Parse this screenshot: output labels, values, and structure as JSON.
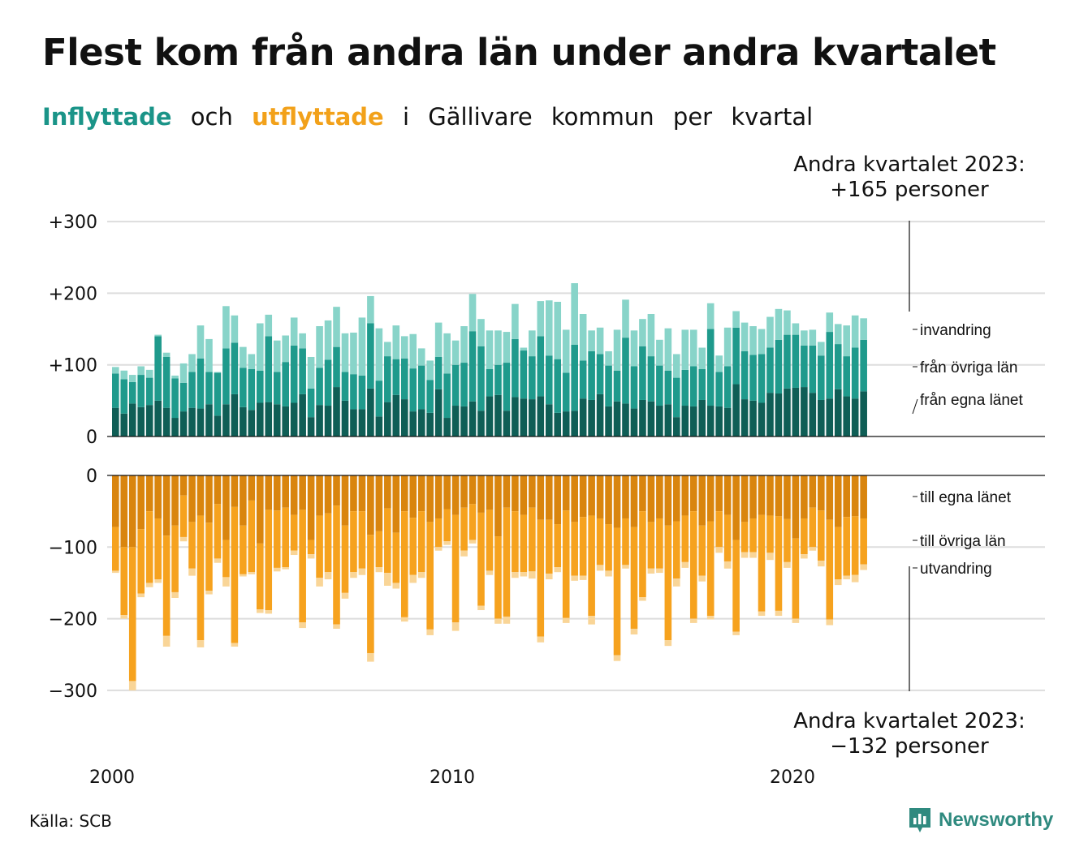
{
  "title": "Flest kom från andra län under andra kvartalet",
  "subtitle": {
    "word1": "Inflyttade",
    "word2": "och",
    "word3": "utflyttade",
    "word4": "i",
    "word5": "Gällivare",
    "word6": "kommun",
    "word7": "per",
    "word8": "kvartal"
  },
  "annotations": {
    "top_line1": "Andra kvartalet 2023:",
    "top_line2": "+165 personer",
    "bottom_line1": "Andra kvartalet 2023:",
    "bottom_line2": "−132 personer"
  },
  "source": "Källa: SCB",
  "brand": "Newsworthy",
  "colors": {
    "in_egna": "#0f5e56",
    "in_ovriga": "#1f9a8c",
    "in_invandring": "#88d4c9",
    "out_egna": "#d9850e",
    "out_ovriga": "#f6a21e",
    "out_utvandring": "#f9d597",
    "grid": "#dddddd",
    "brand": "#2f8a7f"
  },
  "chart_data": [
    {
      "type": "bar",
      "stacked": true,
      "panel": "inflyttade",
      "x_start": "2000 Q1",
      "x_end": "2023 Q2",
      "x_ticks": [
        "2000",
        "2010",
        "2020"
      ],
      "y_ticks": [
        "+300",
        "+200",
        "+100",
        "0"
      ],
      "ylim": [
        0,
        300
      ],
      "series": [
        {
          "name": "från egna länet",
          "values": [
            40,
            32,
            46,
            41,
            44,
            50,
            40,
            26,
            35,
            40,
            39,
            45,
            29,
            45,
            59,
            41,
            37,
            47,
            48,
            45,
            42,
            47,
            59,
            27,
            44,
            43,
            69,
            50,
            38,
            38,
            67,
            28,
            48,
            58,
            52,
            35,
            38,
            33,
            66,
            26,
            43,
            42,
            49,
            36,
            56,
            58,
            36,
            55,
            53,
            52,
            56,
            45,
            33,
            35,
            36,
            53,
            51,
            59,
            42,
            49,
            46,
            39,
            51,
            49,
            43,
            45,
            27,
            43,
            42,
            51,
            43,
            42,
            40,
            73,
            52,
            50,
            47,
            61,
            60,
            67,
            68,
            69,
            61,
            51,
            53,
            66,
            56,
            53,
            63
          ]
        },
        {
          "name": "från övriga län",
          "values": [
            48,
            48,
            30,
            45,
            38,
            90,
            71,
            55,
            40,
            50,
            70,
            45,
            60,
            78,
            72,
            55,
            57,
            45,
            92,
            45,
            62,
            80,
            64,
            40,
            52,
            64,
            56,
            40,
            49,
            47,
            91,
            50,
            64,
            50,
            57,
            60,
            61,
            46,
            45,
            62,
            57,
            61,
            98,
            90,
            38,
            42,
            67,
            81,
            67,
            60,
            84,
            68,
            75,
            54,
            92,
            53,
            68,
            56,
            57,
            43,
            92,
            59,
            75,
            63,
            56,
            47,
            55,
            50,
            56,
            43,
            107,
            48,
            58,
            79,
            67,
            64,
            68,
            63,
            75,
            75,
            74,
            58,
            66,
            62,
            93,
            63,
            56,
            71,
            72
          ]
        },
        {
          "name": "invandring",
          "values": [
            9,
            12,
            10,
            12,
            11,
            2,
            6,
            4,
            27,
            25,
            46,
            46,
            1,
            59,
            38,
            29,
            21,
            66,
            30,
            44,
            37,
            39,
            21,
            44,
            58,
            55,
            56,
            54,
            58,
            81,
            38,
            73,
            20,
            47,
            31,
            48,
            24,
            27,
            48,
            56,
            34,
            51,
            52,
            38,
            54,
            48,
            43,
            49,
            4,
            36,
            49,
            77,
            80,
            60,
            86,
            65,
            29,
            37,
            20,
            57,
            53,
            50,
            38,
            59,
            36,
            59,
            33,
            56,
            51,
            30,
            36,
            23,
            54,
            23,
            40,
            40,
            35,
            43,
            43,
            34,
            16,
            21,
            22,
            19,
            27,
            28,
            43,
            45,
            30
          ]
        }
      ]
    },
    {
      "type": "bar",
      "stacked": true,
      "panel": "utflyttade",
      "x_start": "2000 Q1",
      "x_end": "2023 Q2",
      "x_ticks": [
        "2000",
        "2010",
        "2020"
      ],
      "y_ticks": [
        "0",
        "−100",
        "−200",
        "−300"
      ],
      "ylim": [
        -300,
        0
      ],
      "series": [
        {
          "name": "till egna länet",
          "values": [
            -72,
            -100,
            -100,
            -75,
            -50,
            -60,
            -84,
            -70,
            -28,
            -65,
            -56,
            -66,
            -40,
            -90,
            -44,
            -70,
            -35,
            -95,
            -48,
            -49,
            -45,
            -55,
            -48,
            -90,
            -56,
            -53,
            -42,
            -70,
            -50,
            -50,
            -83,
            -78,
            -46,
            -80,
            -50,
            -59,
            -50,
            -65,
            -60,
            -47,
            -55,
            -45,
            -40,
            -52,
            -48,
            -85,
            -45,
            -50,
            -55,
            -45,
            -62,
            -62,
            -68,
            -49,
            -65,
            -58,
            -56,
            -60,
            -68,
            -73,
            -60,
            -72,
            -50,
            -65,
            -60,
            -70,
            -64,
            -56,
            -50,
            -70,
            -64,
            -50,
            -55,
            -90,
            -65,
            -60,
            -55,
            -56,
            -57,
            -61,
            -88,
            -60,
            -45,
            -49,
            -62,
            -72,
            -58,
            -57,
            -60
          ]
        },
        {
          "name": "till övriga län",
          "values": [
            -61,
            -95,
            -187,
            -90,
            -100,
            -85,
            -140,
            -93,
            -58,
            -65,
            -174,
            -95,
            -76,
            -52,
            -190,
            -68,
            -100,
            -92,
            -140,
            -80,
            -83,
            -50,
            -157,
            -20,
            -87,
            -82,
            -166,
            -94,
            -85,
            -80,
            -165,
            -50,
            -90,
            -70,
            -148,
            -80,
            -85,
            -150,
            -40,
            -45,
            -150,
            -60,
            -50,
            -130,
            -85,
            -115,
            -152,
            -85,
            -80,
            -89,
            -163,
            -75,
            -60,
            -150,
            -75,
            -82,
            -140,
            -65,
            -65,
            -178,
            -65,
            -142,
            -120,
            -65,
            -70,
            -160,
            -80,
            -65,
            -150,
            -70,
            -132,
            -50,
            -65,
            -128,
            -42,
            -47,
            -135,
            -52,
            -132,
            -60,
            -112,
            -50,
            -55,
            -70,
            -139,
            -73,
            -82,
            -82,
            -64
          ]
        },
        {
          "name": "utvandring",
          "values": [
            -3,
            -5,
            -13,
            -5,
            -6,
            -5,
            -15,
            -8,
            -6,
            -10,
            -10,
            -5,
            -6,
            -13,
            -5,
            -3,
            -3,
            -5,
            -5,
            -5,
            -3,
            -6,
            -8,
            -6,
            -12,
            -10,
            -6,
            -8,
            -8,
            -9,
            -12,
            -7,
            -18,
            -8,
            -6,
            -11,
            -8,
            -8,
            -5,
            -5,
            -12,
            -8,
            -5,
            -6,
            -6,
            -7,
            -10,
            -8,
            -6,
            -10,
            -8,
            -8,
            -7,
            -7,
            -7,
            -6,
            -12,
            -8,
            -8,
            -8,
            -5,
            -8,
            -5,
            -7,
            -6,
            -8,
            -11,
            -8,
            -6,
            -8,
            -5,
            -8,
            -10,
            -5,
            -8,
            -8,
            -6,
            -10,
            -7,
            -8,
            -6,
            -6,
            -5,
            -8,
            -8,
            -8,
            -5,
            -10,
            -8
          ]
        }
      ]
    }
  ]
}
